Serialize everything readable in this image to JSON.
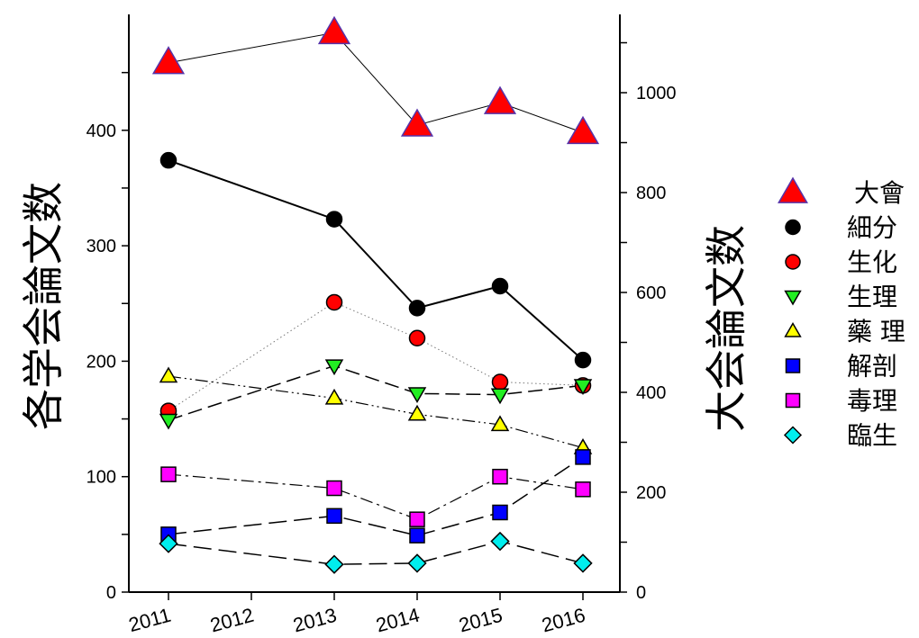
{
  "chart_data": {
    "type": "line",
    "x_categories": [
      "2011",
      "2012",
      "2013",
      "2014",
      "2015",
      "2016"
    ],
    "left_axis": {
      "label": "各学会論文数",
      "ylim": [
        0,
        500
      ],
      "ticks": [
        0,
        100,
        200,
        300,
        400
      ]
    },
    "right_axis": {
      "label": "大会論文数",
      "ylim": [
        0,
        1150
      ],
      "ticks": [
        0,
        200,
        400,
        600,
        800,
        1000
      ]
    },
    "grid": false,
    "legend_position": "right",
    "series": [
      {
        "name": "大會",
        "axis": "right",
        "marker": "triangle-up",
        "color": "#ff0000",
        "edge": "#5533aa",
        "line": "solid-thin",
        "points": [
          [
            "2011",
            1060
          ],
          [
            "2013",
            1120
          ],
          [
            "2014",
            935
          ],
          [
            "2015",
            980
          ],
          [
            "2016",
            920
          ]
        ]
      },
      {
        "name": "細分",
        "axis": "left",
        "marker": "circle",
        "color": "#000000",
        "edge": "#000000",
        "line": "solid",
        "points": [
          [
            "2011",
            374
          ],
          [
            "2013",
            323
          ],
          [
            "2014",
            246
          ],
          [
            "2015",
            265
          ],
          [
            "2016",
            201
          ]
        ]
      },
      {
        "name": "生化",
        "axis": "left",
        "marker": "circle",
        "color": "#ff0000",
        "edge": "#000000",
        "line": "dotted",
        "points": [
          [
            "2011",
            157
          ],
          [
            "2013",
            251
          ],
          [
            "2014",
            220
          ],
          [
            "2015",
            182
          ],
          [
            "2016",
            179
          ]
        ]
      },
      {
        "name": "生理",
        "axis": "left",
        "marker": "triangle-down",
        "color": "#22ee22",
        "edge": "#000000",
        "line": "dashed",
        "points": [
          [
            "2011",
            149
          ],
          [
            "2013",
            196
          ],
          [
            "2014",
            172
          ],
          [
            "2015",
            171
          ],
          [
            "2016",
            179
          ]
        ]
      },
      {
        "name": "藥 理",
        "axis": "left",
        "marker": "triangle-up",
        "color": "#ffff00",
        "edge": "#000000",
        "line": "dash-dot-dot",
        "points": [
          [
            "2011",
            187
          ],
          [
            "2013",
            168
          ],
          [
            "2014",
            154
          ],
          [
            "2015",
            145
          ],
          [
            "2016",
            125
          ]
        ]
      },
      {
        "name": "解剖",
        "axis": "left",
        "marker": "square",
        "color": "#0000ff",
        "edge": "#000000",
        "line": "long-dash",
        "points": [
          [
            "2011",
            50
          ],
          [
            "2013",
            66
          ],
          [
            "2014",
            49
          ],
          [
            "2015",
            69
          ],
          [
            "2016",
            117
          ]
        ]
      },
      {
        "name": "毒理",
        "axis": "left",
        "marker": "square",
        "color": "#ff00ff",
        "edge": "#000000",
        "line": "dash-dot",
        "points": [
          [
            "2011",
            102
          ],
          [
            "2013",
            90
          ],
          [
            "2014",
            63
          ],
          [
            "2015",
            100
          ],
          [
            "2016",
            89
          ]
        ]
      },
      {
        "name": "臨生",
        "axis": "left",
        "marker": "diamond",
        "color": "#00eeee",
        "edge": "#000000",
        "line": "long-dash",
        "points": [
          [
            "2011",
            42
          ],
          [
            "2013",
            24
          ],
          [
            "2014",
            25
          ],
          [
            "2015",
            44
          ],
          [
            "2016",
            25
          ]
        ]
      }
    ]
  }
}
